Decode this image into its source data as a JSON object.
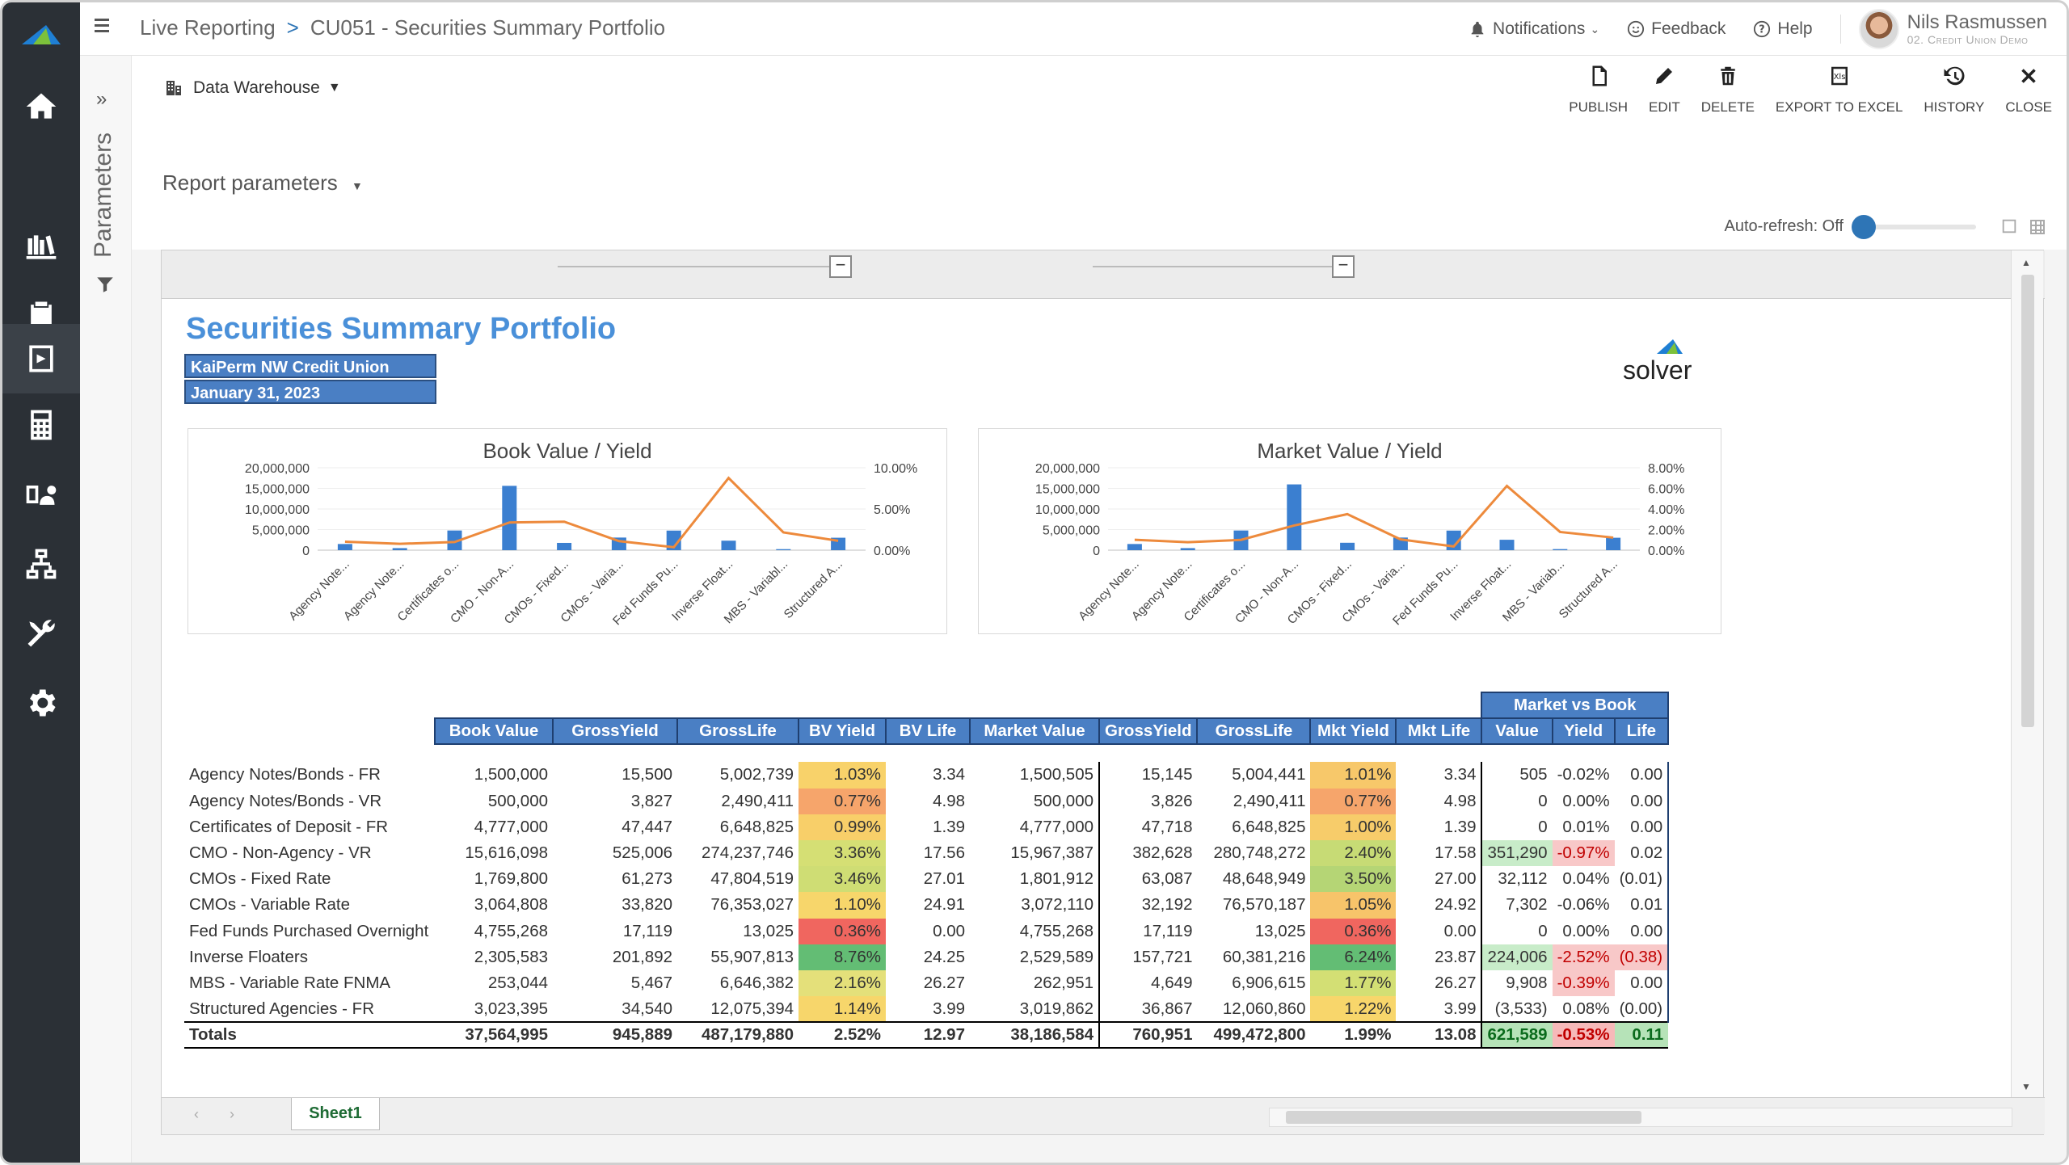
{
  "topbar": {
    "breadcrumb_root": "Live Reporting",
    "breadcrumb_sep": ">",
    "breadcrumb_page": "CU051 - Securities Summary Portfolio",
    "notifications": "Notifications",
    "feedback": "Feedback",
    "help": "Help",
    "user_name": "Nils Rasmussen",
    "user_org": "02. Credit Union Demo"
  },
  "params": {
    "label": "Parameters",
    "report_params": "Report parameters"
  },
  "toolbar": {
    "source": "Data Warehouse",
    "publish": "PUBLISH",
    "edit": "EDIT",
    "delete": "DELETE",
    "export": "EXPORT TO EXCEL",
    "history": "HISTORY",
    "close": "CLOSE"
  },
  "autorefresh": "Auto-refresh: Off",
  "sheet": {
    "tab": "Sheet1"
  },
  "report": {
    "title": "Securities Summary Portfolio",
    "entity": "KaiPerm NW Credit Union",
    "date": "January 31, 2023",
    "logo": "solver"
  },
  "chart_data": [
    {
      "type": "bar",
      "title": "Book Value / Yield",
      "categories": [
        "Agency Note...",
        "Agency Note...",
        "Certificates o...",
        "CMO - Non-A...",
        "CMOs - Fixed...",
        "CMOs - Varia...",
        "Fed Funds Pu...",
        "Inverse Float...",
        "MBS - Variabl...",
        "Structured A..."
      ],
      "series": [
        {
          "values": [
            1500000,
            500000,
            4777000,
            15616098,
            1769800,
            3064808,
            4755268,
            2305583,
            253044,
            3023395
          ]
        },
        {
          "values": [
            1.03,
            0.77,
            0.99,
            3.36,
            3.46,
            1.1,
            0.36,
            8.76,
            2.16,
            1.14
          ]
        }
      ],
      "yticks": [
        "20,000,000",
        "15,000,000",
        "10,000,000",
        "5,000,000",
        "0"
      ],
      "y2ticks": [
        "10.00%",
        "5.00%",
        "0.00%"
      ],
      "ylim": [
        0,
        20000000
      ],
      "y2lim": [
        0,
        10
      ]
    },
    {
      "type": "bar",
      "title": "Market Value / Yield",
      "categories": [
        "Agency Note...",
        "Agency Note...",
        "Certificates o...",
        "CMO - Non-A...",
        "CMOs - Fixed...",
        "CMOs - Varia...",
        "Fed Funds Pu...",
        "Inverse Float...",
        "MBS - Variab...",
        "Structured A..."
      ],
      "series": [
        {
          "values": [
            1500505,
            500000,
            4777000,
            15967387,
            1801912,
            3072110,
            4755268,
            2529589,
            262951,
            3019862
          ]
        },
        {
          "values": [
            1.01,
            0.77,
            1.0,
            2.4,
            3.5,
            1.05,
            0.36,
            6.24,
            1.77,
            1.22
          ]
        }
      ],
      "yticks": [
        "20,000,000",
        "15,000,000",
        "10,000,000",
        "5,000,000",
        "0"
      ],
      "y2ticks": [
        "8.00%",
        "6.00%",
        "4.00%",
        "2.00%",
        "0.00%"
      ],
      "ylim": [
        0,
        20000000
      ],
      "y2lim": [
        0,
        8
      ]
    }
  ],
  "table": {
    "group_header": "Market vs Book",
    "headers": [
      "Book Value",
      "GrossYield",
      "GrossLife",
      "BV Yield",
      "BV Life",
      "Market Value",
      "GrossYield",
      "GrossLife",
      "Mkt Yield",
      "Mkt Life",
      "Value",
      "Yield",
      "Life"
    ],
    "rows": [
      [
        "Agency Notes/Bonds - FR",
        "1,500,000",
        "15,500",
        "5,002,739",
        "1.03%",
        "3.34",
        "1,500,505",
        "15,145",
        "5,004,441",
        "1.01%",
        "3.34",
        "505",
        "-0.02%",
        "0.00"
      ],
      [
        "Agency Notes/Bonds - VR",
        "500,000",
        "3,827",
        "2,490,411",
        "0.77%",
        "4.98",
        "500,000",
        "3,826",
        "2,490,411",
        "0.77%",
        "4.98",
        "0",
        "0.00%",
        "0.00"
      ],
      [
        "Certificates of Deposit - FR",
        "4,777,000",
        "47,447",
        "6,648,825",
        "0.99%",
        "1.39",
        "4,777,000",
        "47,718",
        "6,648,825",
        "1.00%",
        "1.39",
        "0",
        "0.01%",
        "0.00"
      ],
      [
        "CMO - Non-Agency - VR",
        "15,616,098",
        "525,006",
        "274,237,746",
        "3.36%",
        "17.56",
        "15,967,387",
        "382,628",
        "280,748,272",
        "2.40%",
        "17.58",
        "351,290",
        "-0.97%",
        "0.02"
      ],
      [
        "CMOs - Fixed Rate",
        "1,769,800",
        "61,273",
        "47,804,519",
        "3.46%",
        "27.01",
        "1,801,912",
        "63,087",
        "48,648,949",
        "3.50%",
        "27.00",
        "32,112",
        "0.04%",
        "(0.01)"
      ],
      [
        "CMOs - Variable Rate",
        "3,064,808",
        "33,820",
        "76,353,027",
        "1.10%",
        "24.91",
        "3,072,110",
        "32,192",
        "76,570,187",
        "1.05%",
        "24.92",
        "7,302",
        "-0.06%",
        "0.01"
      ],
      [
        "Fed Funds Purchased Overnight",
        "4,755,268",
        "17,119",
        "13,025",
        "0.36%",
        "0.00",
        "4,755,268",
        "17,119",
        "13,025",
        "0.36%",
        "0.00",
        "0",
        "0.00%",
        "0.00"
      ],
      [
        "Inverse Floaters",
        "2,305,583",
        "201,892",
        "55,907,813",
        "8.76%",
        "24.25",
        "2,529,589",
        "157,721",
        "60,381,216",
        "6.24%",
        "23.87",
        "224,006",
        "-2.52%",
        "(0.38)"
      ],
      [
        "MBS - Variable Rate FNMA",
        "253,044",
        "5,467",
        "6,646,382",
        "2.16%",
        "26.27",
        "262,951",
        "4,649",
        "6,906,615",
        "1.77%",
        "26.27",
        "9,908",
        "-0.39%",
        "0.00"
      ],
      [
        "Structured Agencies - FR",
        "3,023,395",
        "34,540",
        "12,075,394",
        "1.14%",
        "3.99",
        "3,019,862",
        "36,867",
        "12,060,860",
        "1.22%",
        "3.99",
        "(3,533)",
        "0.08%",
        "(0.00)"
      ]
    ],
    "totals": [
      "Totals",
      "37,564,995",
      "945,889",
      "487,179,880",
      "2.52%",
      "12.97",
      "38,186,584",
      "760,951",
      "499,472,800",
      "1.99%",
      "13.08",
      "621,589",
      "-0.53%",
      "0.11"
    ],
    "bv_yield_colors": [
      "#f8d26a",
      "#f6a56b",
      "#f8cf69",
      "#d5df74",
      "#cfdd74",
      "#f7d66b",
      "#f0665f",
      "#63bd74",
      "#e4e07a",
      "#f7d66b"
    ],
    "mkt_yield_colors": [
      "#f7c86a",
      "#f6a56b",
      "#f7cc6a",
      "#c7db75",
      "#b5d575",
      "#f7c46a",
      "#f0665f",
      "#63bd74",
      "#d3df74",
      "#f8d66b"
    ],
    "mvb_value_colors": [
      "",
      "",
      "",
      "#c8ecc9",
      "",
      "",
      "",
      "#c8ecc9",
      "",
      ""
    ],
    "mvb_yield_colors": [
      "",
      "",
      "",
      "#f8c8c8",
      "",
      "",
      "",
      "#f8c8c8",
      "#f8c8c8",
      ""
    ],
    "mvb_life_colors": [
      "",
      "",
      "",
      "",
      "",
      "",
      "",
      "#f8c8c8",
      "",
      ""
    ],
    "total_colors": {
      "value": "#b6e3b8",
      "yield": "#f6b9b9",
      "life": "#b6e3b8",
      "red_text": "#c00000",
      "green_text": "#0b6b1d"
    }
  }
}
